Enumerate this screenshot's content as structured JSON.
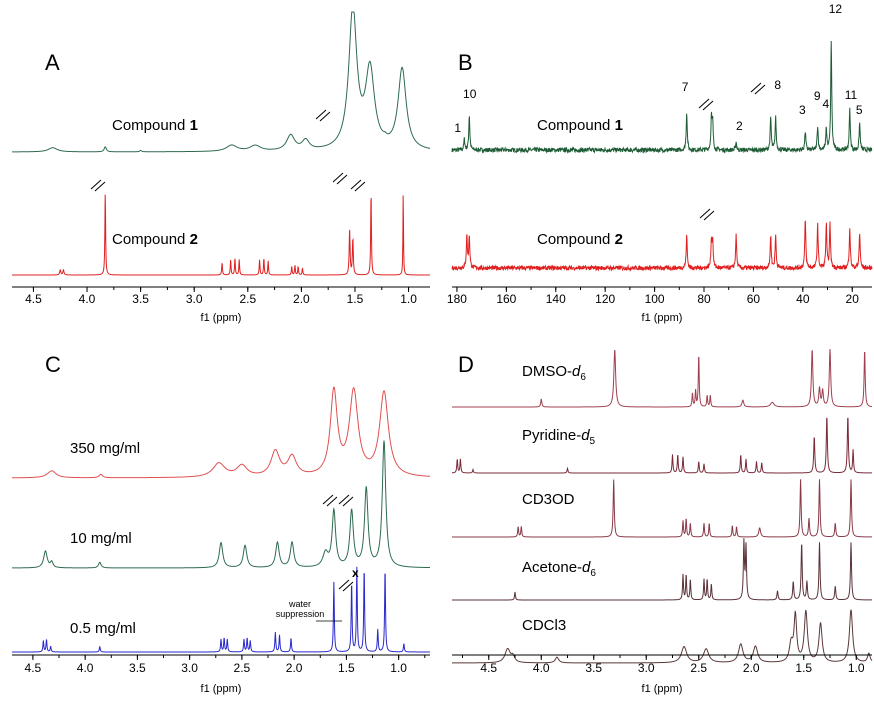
{
  "chart_data": [
    {
      "panel": "A",
      "type": "line",
      "xlabel": "f1 (ppm)",
      "xlim": [
        4.7,
        0.8
      ],
      "ticks": [
        "4.5",
        "4.0",
        "3.5",
        "3.0",
        "2.5",
        "2.0",
        "1.5",
        "1.0"
      ],
      "tick_values": [
        4.5,
        4.0,
        3.5,
        3.0,
        2.5,
        2.0,
        1.5,
        1.0
      ],
      "series": [
        {
          "label_pre": "Compound ",
          "label_bold": "1",
          "color": "#2e6b4f",
          "noise": 0.0,
          "peaks": [
            [
              4.32,
              0.05,
              0.15
            ],
            [
              3.83,
              0.012,
              0.18
            ],
            [
              3.5,
              0.01,
              0.05
            ],
            [
              2.65,
              0.06,
              0.22
            ],
            [
              2.43,
              0.06,
              0.2
            ],
            [
              2.1,
              0.045,
              0.55
            ],
            [
              1.96,
              0.04,
              0.35
            ],
            [
              1.52,
              0.045,
              5.0
            ],
            [
              1.36,
              0.05,
              2.8
            ],
            [
              1.06,
              0.045,
              2.9
            ],
            [
              1.22,
              0.02,
              0.08
            ]
          ]
        },
        {
          "label_pre": "Compound ",
          "label_bold": "2",
          "color": "#e02020",
          "noise": 0.0,
          "peaks": [
            [
              4.25,
              0.006,
              0.18
            ],
            [
              4.22,
              0.006,
              0.18
            ],
            [
              3.83,
              0.004,
              3.0
            ],
            [
              2.74,
              0.004,
              0.45
            ],
            [
              2.66,
              0.004,
              0.55
            ],
            [
              2.62,
              0.004,
              0.6
            ],
            [
              2.58,
              0.004,
              0.55
            ],
            [
              2.39,
              0.004,
              0.55
            ],
            [
              2.35,
              0.004,
              0.6
            ],
            [
              2.31,
              0.004,
              0.5
            ],
            [
              2.09,
              0.004,
              0.3
            ],
            [
              2.06,
              0.004,
              0.35
            ],
            [
              2.03,
              0.004,
              0.3
            ],
            [
              1.99,
              0.004,
              0.25
            ],
            [
              1.55,
              0.005,
              1.6
            ],
            [
              1.52,
              0.005,
              1.3
            ],
            [
              1.35,
              0.004,
              3.0
            ],
            [
              1.05,
              0.003,
              3.0
            ]
          ]
        }
      ]
    },
    {
      "panel": "B",
      "type": "line",
      "xlabel": "f1 (ppm)",
      "xlim": [
        182,
        12
      ],
      "ticks": [
        "180",
        "160",
        "140",
        "120",
        "100",
        "80",
        "60",
        "40",
        "20"
      ],
      "tick_values": [
        180,
        160,
        140,
        120,
        100,
        80,
        60,
        40,
        20
      ],
      "series": [
        {
          "label_pre": "Compound ",
          "label_bold": "1",
          "color": "#1e5c36",
          "noise": 0.08,
          "peaks": [
            [
              177,
              0.25,
              0.4
            ],
            [
              175,
              0.25,
              1.3
            ],
            [
              87,
              0.25,
              1.4
            ],
            [
              77,
              0.25,
              1.2
            ],
            [
              76.5,
              0.25,
              1.0
            ],
            [
              67,
              0.25,
              0.3
            ],
            [
              53,
              0.25,
              1.2
            ],
            [
              51,
              0.25,
              1.2
            ],
            [
              39,
              0.25,
              0.7
            ],
            [
              34,
              0.25,
              0.9
            ],
            [
              30.5,
              0.25,
              0.8
            ],
            [
              28.5,
              0.25,
              4.0
            ],
            [
              21,
              0.25,
              1.5
            ],
            [
              17,
              0.25,
              1.0
            ]
          ],
          "labels": [
            [
              179,
              "1"
            ],
            [
              175.5,
              "10"
            ],
            [
              87,
              "7"
            ],
            [
              65,
              "2"
            ],
            [
              49.5,
              "8"
            ],
            [
              39.5,
              "3"
            ],
            [
              33.5,
              "9"
            ],
            [
              30,
              "4"
            ],
            [
              27.5,
              "12"
            ],
            [
              21,
              "11"
            ],
            [
              16.5,
              "5"
            ]
          ]
        },
        {
          "label_pre": "Compound ",
          "label_bold": "2",
          "color": "#e02020",
          "noise": 0.08,
          "peaks": [
            [
              176,
              0.25,
              1.2
            ],
            [
              175,
              0.25,
              1.2
            ],
            [
              87,
              0.25,
              1.2
            ],
            [
              77,
              0.25,
              1.0
            ],
            [
              76.5,
              0.25,
              1.0
            ],
            [
              67,
              0.25,
              1.2
            ],
            [
              53,
              0.25,
              1.2
            ],
            [
              51,
              0.25,
              1.2
            ],
            [
              39,
              0.25,
              1.8
            ],
            [
              34,
              0.25,
              1.6
            ],
            [
              30.5,
              0.25,
              1.6
            ],
            [
              29,
              0.25,
              1.6
            ],
            [
              21,
              0.25,
              1.5
            ],
            [
              17,
              0.25,
              1.3
            ]
          ]
        }
      ]
    },
    {
      "panel": "C",
      "type": "line",
      "xlabel": "f1 (ppm)",
      "xlim": [
        4.7,
        0.7
      ],
      "ticks": [
        "4.5",
        "4.0",
        "3.5",
        "3.0",
        "2.5",
        "2.0",
        "1.5",
        "1.0"
      ],
      "tick_values": [
        4.5,
        4.0,
        3.5,
        3.0,
        2.5,
        2.0,
        1.5,
        1.0
      ],
      "series": [
        {
          "label": "350 mg/ml",
          "color": "#e05050",
          "noise": 0.0,
          "peaks": [
            [
              4.32,
              0.05,
              0.25
            ],
            [
              3.85,
              0.02,
              0.12
            ],
            [
              2.72,
              0.07,
              0.5
            ],
            [
              2.5,
              0.06,
              0.4
            ],
            [
              2.18,
              0.05,
              0.9
            ],
            [
              2.02,
              0.05,
              0.7
            ],
            [
              1.62,
              0.04,
              3.0
            ],
            [
              1.43,
              0.05,
              3.0
            ],
            [
              1.14,
              0.05,
              3.0
            ]
          ]
        },
        {
          "label": "10 mg/ml",
          "color": "#2e6b4f",
          "noise": 0.0,
          "peaks": [
            [
              4.38,
              0.02,
              0.6
            ],
            [
              4.32,
              0.015,
              0.2
            ],
            [
              3.86,
              0.015,
              0.2
            ],
            [
              2.7,
              0.02,
              0.9
            ],
            [
              2.47,
              0.02,
              0.8
            ],
            [
              2.16,
              0.02,
              0.9
            ],
            [
              2.02,
              0.02,
              0.9
            ],
            [
              1.7,
              0.03,
              0.5
            ],
            [
              1.62,
              0.02,
              2.0
            ],
            [
              1.45,
              0.02,
              2.0
            ],
            [
              1.31,
              0.02,
              2.8
            ],
            [
              1.14,
              0.02,
              4.5
            ]
          ]
        },
        {
          "label": "0.5 mg/ml",
          "color": "#2a2acc",
          "noise": 0.0,
          "peaks": [
            [
              4.4,
              0.005,
              0.4
            ],
            [
              4.37,
              0.005,
              0.45
            ],
            [
              4.33,
              0.005,
              0.2
            ],
            [
              3.86,
              0.005,
              0.2
            ],
            [
              2.7,
              0.005,
              0.45
            ],
            [
              2.67,
              0.005,
              0.5
            ],
            [
              2.64,
              0.005,
              0.45
            ],
            [
              2.48,
              0.005,
              0.45
            ],
            [
              2.45,
              0.005,
              0.5
            ],
            [
              2.42,
              0.005,
              0.4
            ],
            [
              2.18,
              0.005,
              0.7
            ],
            [
              2.14,
              0.005,
              0.6
            ],
            [
              2.03,
              0.005,
              0.5
            ],
            [
              1.62,
              0.005,
              2.5
            ],
            [
              1.45,
              0.005,
              2.5
            ],
            [
              1.4,
              0.005,
              3.0
            ],
            [
              1.33,
              0.005,
              3.0
            ],
            [
              1.2,
              0.005,
              0.8
            ],
            [
              1.13,
              0.005,
              3.0
            ],
            [
              0.95,
              0.005,
              0.3
            ]
          ]
        }
      ],
      "annotations": [
        "water",
        "suppression",
        "x"
      ]
    },
    {
      "panel": "D",
      "type": "line",
      "xlabel": "f1 (ppm)",
      "xlim": [
        4.85,
        0.85
      ],
      "ticks": [
        "4.5",
        "4.0",
        "3.5",
        "3.0",
        "2.5",
        "2.0",
        "1.5",
        "1.0"
      ],
      "tick_values": [
        4.5,
        4.0,
        3.5,
        3.0,
        2.5,
        2.0,
        1.5,
        1.0
      ],
      "series": [
        {
          "label_pre": "DMSO-",
          "label_it": "d",
          "label_sub": "6",
          "color": "#a04050",
          "noise": 0.0,
          "peaks": [
            [
              4.0,
              0.006,
              0.35
            ],
            [
              3.3,
              0.01,
              2.5
            ],
            [
              2.56,
              0.005,
              0.6
            ],
            [
              2.53,
              0.005,
              0.7
            ],
            [
              2.5,
              0.005,
              2.3
            ],
            [
              2.42,
              0.005,
              0.5
            ],
            [
              2.39,
              0.005,
              0.5
            ],
            [
              2.08,
              0.01,
              0.3
            ],
            [
              1.8,
              0.02,
              0.2
            ],
            [
              1.42,
              0.008,
              2.5
            ],
            [
              1.35,
              0.008,
              0.8
            ],
            [
              1.32,
              0.008,
              0.7
            ],
            [
              1.25,
              0.008,
              2.5
            ],
            [
              0.92,
              0.006,
              2.5
            ]
          ]
        },
        {
          "label_pre": "Pyridine-",
          "label_it": "d",
          "label_sub": "5",
          "color": "#7a2a38",
          "noise": 0.0,
          "peaks": [
            [
              4.8,
              0.005,
              0.6
            ],
            [
              4.77,
              0.005,
              0.6
            ],
            [
              4.65,
              0.005,
              0.15
            ],
            [
              3.75,
              0.005,
              0.2
            ],
            [
              2.75,
              0.005,
              0.8
            ],
            [
              2.7,
              0.005,
              0.8
            ],
            [
              2.65,
              0.005,
              0.7
            ],
            [
              2.5,
              0.005,
              0.5
            ],
            [
              2.45,
              0.005,
              0.4
            ],
            [
              2.1,
              0.005,
              0.8
            ],
            [
              2.05,
              0.005,
              0.6
            ],
            [
              1.95,
              0.005,
              0.5
            ],
            [
              1.9,
              0.005,
              0.45
            ],
            [
              1.4,
              0.006,
              1.6
            ],
            [
              1.28,
              0.006,
              2.5
            ],
            [
              1.08,
              0.006,
              2.5
            ],
            [
              1.03,
              0.005,
              1.0
            ]
          ]
        },
        {
          "label": "CD3OD",
          "color": "#8a3a48",
          "noise": 0.0,
          "peaks": [
            [
              4.22,
              0.005,
              0.45
            ],
            [
              4.19,
              0.005,
              0.45
            ],
            [
              3.31,
              0.006,
              2.5
            ],
            [
              2.65,
              0.005,
              0.7
            ],
            [
              2.62,
              0.005,
              0.8
            ],
            [
              2.58,
              0.005,
              0.6
            ],
            [
              2.45,
              0.005,
              0.6
            ],
            [
              2.4,
              0.005,
              0.6
            ],
            [
              2.18,
              0.005,
              0.5
            ],
            [
              2.14,
              0.005,
              0.45
            ],
            [
              1.92,
              0.01,
              0.4
            ],
            [
              1.53,
              0.006,
              2.5
            ],
            [
              1.45,
              0.006,
              0.8
            ],
            [
              1.35,
              0.006,
              2.5
            ],
            [
              1.2,
              0.006,
              0.6
            ],
            [
              1.05,
              0.006,
              2.5
            ]
          ]
        },
        {
          "label_pre": "Acetone-",
          "label_it": "d",
          "label_sub": "6",
          "color": "#5a3238",
          "noise": 0.0,
          "peaks": [
            [
              4.25,
              0.005,
              0.35
            ],
            [
              2.65,
              0.005,
              1.1
            ],
            [
              2.62,
              0.005,
              1.1
            ],
            [
              2.58,
              0.005,
              0.9
            ],
            [
              2.45,
              0.005,
              0.9
            ],
            [
              2.42,
              0.005,
              0.9
            ],
            [
              2.38,
              0.005,
              0.7
            ],
            [
              2.07,
              0.006,
              2.5
            ],
            [
              2.05,
              0.006,
              2.3
            ],
            [
              1.75,
              0.006,
              0.4
            ],
            [
              1.6,
              0.006,
              0.8
            ],
            [
              1.52,
              0.006,
              2.5
            ],
            [
              1.47,
              0.006,
              0.8
            ],
            [
              1.35,
              0.006,
              2.5
            ],
            [
              1.2,
              0.006,
              0.6
            ],
            [
              1.05,
              0.006,
              2.5
            ]
          ]
        },
        {
          "label": "CDCl3",
          "color": "#5a3838",
          "noise": 0.0,
          "peaks": [
            [
              4.32,
              0.03,
              0.6
            ],
            [
              4.27,
              0.02,
              0.25
            ],
            [
              3.85,
              0.02,
              0.25
            ],
            [
              2.64,
              0.03,
              0.7
            ],
            [
              2.43,
              0.03,
              0.6
            ],
            [
              2.1,
              0.025,
              0.8
            ],
            [
              1.96,
              0.025,
              0.7
            ],
            [
              1.62,
              0.02,
              0.8
            ],
            [
              1.58,
              0.015,
              2.0
            ],
            [
              1.48,
              0.018,
              2.2
            ],
            [
              1.34,
              0.018,
              1.7
            ],
            [
              1.05,
              0.018,
              2.3
            ],
            [
              0.88,
              0.015,
              0.4
            ]
          ]
        }
      ]
    }
  ]
}
